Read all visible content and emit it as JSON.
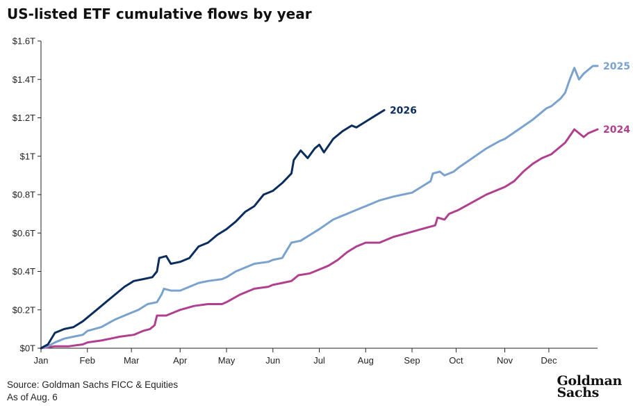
{
  "title": "US-listed ETF cumulative flows by year",
  "footer": {
    "source": "Source: Goldman Sachs FICC & Equities",
    "asof": "As of Aug. 6"
  },
  "logo": {
    "line1": "Goldman",
    "line2": "Sachs"
  },
  "chart_data": {
    "type": "line",
    "y_tick_labels": [
      "$0T",
      "$0.2T",
      "$0.4T",
      "$0.6T",
      "$0.8T",
      "$1T",
      "$1.2T",
      "$1.4T",
      "$1.6T"
    ],
    "y_tick_values": [
      0,
      0.2,
      0.4,
      0.6,
      0.8,
      1.0,
      1.2,
      1.4,
      1.6
    ],
    "ylim": [
      0,
      1.6
    ],
    "x_tick_labels": [
      "Jan",
      "Feb",
      "Mar",
      "Apr",
      "May",
      "Jun",
      "Jul",
      "Aug",
      "Sep",
      "Oct",
      "Nov",
      "Dec"
    ],
    "xlim": [
      0,
      12
    ],
    "x_unit": "months elapsed since Jan 1",
    "y_unit": "trillions USD",
    "grid": "none",
    "series": [
      {
        "name": "2024",
        "color": "#b0408f",
        "points": [
          [
            0,
            0
          ],
          [
            0.3,
            0.01
          ],
          [
            0.6,
            0.01
          ],
          [
            0.9,
            0.02
          ],
          [
            1.0,
            0.03
          ],
          [
            1.3,
            0.04
          ],
          [
            1.5,
            0.05
          ],
          [
            1.7,
            0.06
          ],
          [
            2.0,
            0.07
          ],
          [
            2.2,
            0.09
          ],
          [
            2.35,
            0.1
          ],
          [
            2.45,
            0.12
          ],
          [
            2.5,
            0.17
          ],
          [
            2.7,
            0.17
          ],
          [
            2.9,
            0.19
          ],
          [
            3.0,
            0.2
          ],
          [
            3.3,
            0.22
          ],
          [
            3.6,
            0.23
          ],
          [
            3.9,
            0.23
          ],
          [
            4.0,
            0.24
          ],
          [
            4.3,
            0.28
          ],
          [
            4.6,
            0.31
          ],
          [
            4.9,
            0.32
          ],
          [
            5.0,
            0.33
          ],
          [
            5.2,
            0.34
          ],
          [
            5.4,
            0.35
          ],
          [
            5.55,
            0.38
          ],
          [
            5.8,
            0.39
          ],
          [
            6.0,
            0.41
          ],
          [
            6.2,
            0.43
          ],
          [
            6.4,
            0.46
          ],
          [
            6.6,
            0.5
          ],
          [
            6.8,
            0.53
          ],
          [
            7.0,
            0.55
          ],
          [
            7.3,
            0.55
          ],
          [
            7.6,
            0.58
          ],
          [
            7.9,
            0.6
          ],
          [
            8.2,
            0.62
          ],
          [
            8.5,
            0.64
          ],
          [
            8.55,
            0.68
          ],
          [
            8.7,
            0.67
          ],
          [
            8.8,
            0.7
          ],
          [
            9.0,
            0.72
          ],
          [
            9.3,
            0.76
          ],
          [
            9.6,
            0.8
          ],
          [
            9.9,
            0.83
          ],
          [
            10.0,
            0.84
          ],
          [
            10.2,
            0.87
          ],
          [
            10.4,
            0.92
          ],
          [
            10.6,
            0.96
          ],
          [
            10.8,
            0.99
          ],
          [
            11.0,
            1.01
          ],
          [
            11.2,
            1.05
          ],
          [
            11.3,
            1.07
          ],
          [
            11.5,
            1.14
          ],
          [
            11.6,
            1.12
          ],
          [
            11.7,
            1.1
          ],
          [
            11.8,
            1.12
          ],
          [
            12.0,
            1.14
          ]
        ]
      },
      {
        "name": "2025",
        "color": "#7aa2cf",
        "points": [
          [
            0,
            0
          ],
          [
            0.15,
            0.01
          ],
          [
            0.3,
            0.03
          ],
          [
            0.5,
            0.05
          ],
          [
            0.7,
            0.06
          ],
          [
            0.9,
            0.07
          ],
          [
            1.0,
            0.09
          ],
          [
            1.3,
            0.11
          ],
          [
            1.6,
            0.15
          ],
          [
            1.9,
            0.18
          ],
          [
            2.1,
            0.2
          ],
          [
            2.3,
            0.23
          ],
          [
            2.5,
            0.24
          ],
          [
            2.6,
            0.28
          ],
          [
            2.65,
            0.31
          ],
          [
            2.8,
            0.3
          ],
          [
            3.0,
            0.3
          ],
          [
            3.2,
            0.32
          ],
          [
            3.4,
            0.34
          ],
          [
            3.6,
            0.35
          ],
          [
            3.9,
            0.36
          ],
          [
            4.0,
            0.37
          ],
          [
            4.2,
            0.4
          ],
          [
            4.4,
            0.42
          ],
          [
            4.6,
            0.44
          ],
          [
            4.9,
            0.45
          ],
          [
            5.0,
            0.46
          ],
          [
            5.2,
            0.47
          ],
          [
            5.4,
            0.55
          ],
          [
            5.6,
            0.56
          ],
          [
            5.8,
            0.59
          ],
          [
            6.0,
            0.62
          ],
          [
            6.3,
            0.67
          ],
          [
            6.6,
            0.7
          ],
          [
            6.9,
            0.73
          ],
          [
            7.0,
            0.74
          ],
          [
            7.3,
            0.77
          ],
          [
            7.6,
            0.79
          ],
          [
            7.8,
            0.8
          ],
          [
            8.0,
            0.81
          ],
          [
            8.2,
            0.84
          ],
          [
            8.4,
            0.87
          ],
          [
            8.45,
            0.91
          ],
          [
            8.6,
            0.92
          ],
          [
            8.7,
            0.9
          ],
          [
            8.9,
            0.92
          ],
          [
            9.0,
            0.94
          ],
          [
            9.3,
            0.99
          ],
          [
            9.6,
            1.04
          ],
          [
            9.9,
            1.08
          ],
          [
            10.0,
            1.09
          ],
          [
            10.3,
            1.14
          ],
          [
            10.6,
            1.19
          ],
          [
            10.9,
            1.25
          ],
          [
            11.0,
            1.26
          ],
          [
            11.2,
            1.3
          ],
          [
            11.3,
            1.33
          ],
          [
            11.4,
            1.4
          ],
          [
            11.5,
            1.46
          ],
          [
            11.6,
            1.4
          ],
          [
            11.7,
            1.43
          ],
          [
            11.8,
            1.45
          ],
          [
            11.9,
            1.47
          ],
          [
            12.0,
            1.47
          ]
        ]
      },
      {
        "name": "2026",
        "color": "#0b2d5e",
        "points": [
          [
            0,
            0
          ],
          [
            0.15,
            0.02
          ],
          [
            0.3,
            0.08
          ],
          [
            0.5,
            0.1
          ],
          [
            0.7,
            0.11
          ],
          [
            0.9,
            0.14
          ],
          [
            1.0,
            0.16
          ],
          [
            1.2,
            0.2
          ],
          [
            1.4,
            0.24
          ],
          [
            1.6,
            0.28
          ],
          [
            1.8,
            0.32
          ],
          [
            2.0,
            0.35
          ],
          [
            2.2,
            0.36
          ],
          [
            2.4,
            0.37
          ],
          [
            2.5,
            0.4
          ],
          [
            2.55,
            0.47
          ],
          [
            2.7,
            0.48
          ],
          [
            2.8,
            0.44
          ],
          [
            3.0,
            0.45
          ],
          [
            3.2,
            0.47
          ],
          [
            3.4,
            0.53
          ],
          [
            3.6,
            0.55
          ],
          [
            3.8,
            0.59
          ],
          [
            4.0,
            0.62
          ],
          [
            4.2,
            0.66
          ],
          [
            4.4,
            0.71
          ],
          [
            4.6,
            0.74
          ],
          [
            4.8,
            0.8
          ],
          [
            5.0,
            0.82
          ],
          [
            5.2,
            0.86
          ],
          [
            5.4,
            0.91
          ],
          [
            5.45,
            0.98
          ],
          [
            5.6,
            1.03
          ],
          [
            5.75,
            0.99
          ],
          [
            5.9,
            1.04
          ],
          [
            6.0,
            1.06
          ],
          [
            6.1,
            1.02
          ],
          [
            6.3,
            1.09
          ],
          [
            6.5,
            1.13
          ],
          [
            6.7,
            1.16
          ],
          [
            6.8,
            1.15
          ],
          [
            7.0,
            1.18
          ],
          [
            7.2,
            1.21
          ],
          [
            7.4,
            1.24
          ]
        ]
      }
    ]
  }
}
